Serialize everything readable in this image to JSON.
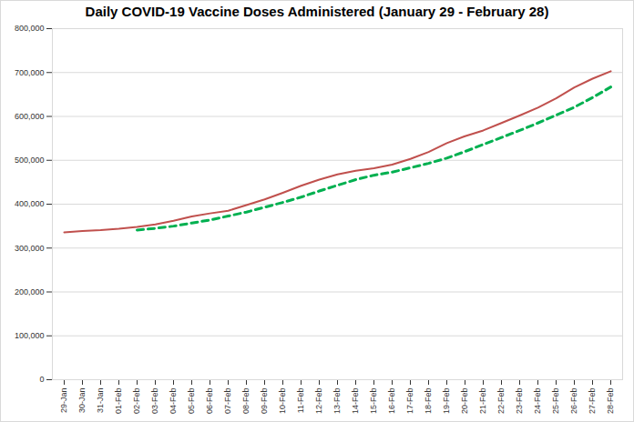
{
  "chart_data": {
    "type": "line",
    "title": "Daily COVID-19 Vaccine Doses Administered (January 29 - February 28)",
    "categories": [
      "29-Jan",
      "30-Jan",
      "31-Jan",
      "01-Feb",
      "02-Feb",
      "03-Feb",
      "04-Feb",
      "05-Feb",
      "06-Feb",
      "07-Feb",
      "08-Feb",
      "09-Feb",
      "10-Feb",
      "11-Feb",
      "12-Feb",
      "13-Feb",
      "14-Feb",
      "15-Feb",
      "16-Feb",
      "17-Feb",
      "18-Feb",
      "19-Feb",
      "20-Feb",
      "21-Feb",
      "22-Feb",
      "23-Feb",
      "24-Feb",
      "25-Feb",
      "26-Feb",
      "27-Feb",
      "28-Feb"
    ],
    "series": [
      {
        "color": "#c0504d",
        "line_style": "solid",
        "values": [
          336000,
          339000,
          341000,
          344000,
          348000,
          354000,
          362000,
          372000,
          379000,
          385000,
          398000,
          411000,
          426000,
          442000,
          456000,
          468000,
          476000,
          482000,
          490000,
          503000,
          519000,
          539000,
          555000,
          568000,
          585000,
          602000,
          620000,
          641000,
          666000,
          686000,
          703000
        ]
      },
      {
        "color": "#00b050",
        "line_style": "dashed",
        "values": [
          null,
          null,
          null,
          null,
          341000,
          345000,
          350000,
          357000,
          364000,
          373000,
          382000,
          393000,
          404000,
          416000,
          430000,
          443000,
          456000,
          466000,
          473000,
          483000,
          493000,
          505000,
          520000,
          536000,
          552000,
          568000,
          585000,
          603000,
          621000,
          643000,
          667000
        ]
      }
    ],
    "ylim": [
      0,
      800000
    ],
    "yticks": [
      0,
      {
        "value": 100000,
        "label": "100,000"
      },
      {
        "value": 200000,
        "label": "200,000"
      },
      {
        "value": 300000,
        "label": "300,000"
      },
      {
        "value": 400000,
        "label": "400,000"
      },
      {
        "value": 500000,
        "label": "500,000"
      },
      {
        "value": 600000,
        "label": "600,000"
      },
      {
        "value": 700000,
        "label": "700,000"
      },
      {
        "value": 800000,
        "label": "800,000"
      }
    ],
    "grid": true
  }
}
